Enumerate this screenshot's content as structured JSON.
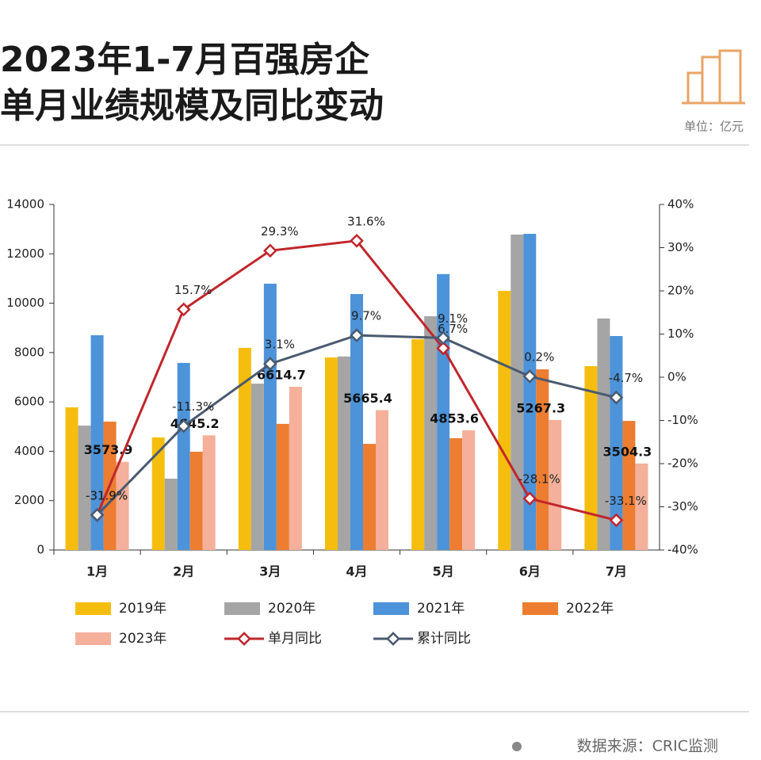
{
  "chart_data": {
    "type": "bar",
    "title": "2023年1-7月百强房企",
    "subtitle": "单月业绩规模及同比变动",
    "unit": "单位：亿元",
    "source": "数据来源：CRIC监测",
    "categories": [
      "1月",
      "2月",
      "3月",
      "4月",
      "5月",
      "6月",
      "7月"
    ],
    "ylim": [
      0,
      14000
    ],
    "yticks": [
      0,
      2000,
      4000,
      6000,
      8000,
      10000,
      12000,
      14000
    ],
    "y2lim": [
      -40,
      40
    ],
    "y2ticks": [
      {
        "value": -40,
        "label": "-40%"
      },
      {
        "value": -30,
        "label": "-30%"
      },
      {
        "value": -20,
        "label": "-20%"
      },
      {
        "value": -10,
        "label": "-10%"
      },
      {
        "value": 0,
        "label": "0%"
      },
      {
        "value": 10,
        "label": "10%"
      },
      {
        "value": 20,
        "label": "20%"
      },
      {
        "value": 30,
        "label": "30%"
      },
      {
        "value": 40,
        "label": "40%"
      }
    ],
    "series": [
      {
        "name": "2019年",
        "color": "#f5be0f",
        "values": [
          5780,
          4560,
          8190,
          7800,
          8540,
          10500,
          7450
        ]
      },
      {
        "name": "2020年",
        "color": "#a5a5a5",
        "values": [
          5040,
          2890,
          6740,
          7840,
          9470,
          12780,
          9380
        ]
      },
      {
        "name": "2021年",
        "color": "#4d93d9",
        "values": [
          8700,
          7580,
          10790,
          10370,
          11180,
          12810,
          8670
        ]
      },
      {
        "name": "2022年",
        "color": "#ed7d31",
        "values": [
          5200,
          3980,
          5110,
          4300,
          4530,
          7320,
          5230
        ]
      },
      {
        "name": "2023年",
        "color": "#f4b09a",
        "values": [
          3573.9,
          4645.2,
          6614.7,
          5665.4,
          4853.6,
          5267.3,
          3504.3
        ]
      },
      {
        "name": "单月同比",
        "color": "#c0262c",
        "type": "line",
        "axis": "y2",
        "values": [
          -31.9,
          15.7,
          29.3,
          31.6,
          6.7,
          -28.1,
          -33.1
        ],
        "value_labels": [
          "-31.9%",
          "15.7%",
          "29.3%",
          "31.6%",
          "6.7%",
          "-28.1%",
          "-33.1%"
        ]
      },
      {
        "name": "累计同比",
        "color": "#4a5a70",
        "type": "line",
        "axis": "y2",
        "values": [
          -31.9,
          -11.3,
          3.1,
          9.7,
          9.1,
          0.2,
          -4.7
        ],
        "value_labels": [
          "-31.9%",
          "-11.3%",
          "3.1%",
          "9.7%",
          "9.1%",
          "0.2%",
          "-4.7%"
        ]
      }
    ]
  }
}
